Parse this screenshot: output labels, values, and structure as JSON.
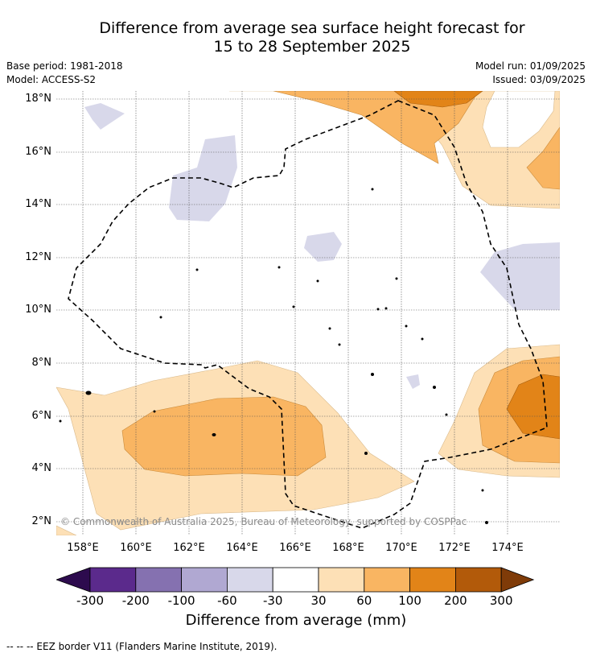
{
  "title_line1": "Difference from average sea surface height forecast for",
  "title_line2": "15 to 28 September 2025",
  "base_period": "Base period: 1981-2018",
  "model": "Model: ACCESS-S2",
  "model_run": "Model run: 01/09/2025",
  "issued": "Issued: 03/09/2025",
  "lat_labels": [
    "18°N",
    "16°N",
    "14°N",
    "12°N",
    "10°N",
    "8°N",
    "6°N",
    "4°N",
    "2°N"
  ],
  "lon_labels": [
    "158°E",
    "160°E",
    "162°E",
    "164°E",
    "166°E",
    "168°E",
    "170°E",
    "172°E",
    "174°E"
  ],
  "copyright": "© Commonwealth of Australia 2025, Bureau of Meteorology, supported by COSPPac",
  "colorbar": {
    "ticks": [
      "-300",
      "-200",
      "-100",
      "-60",
      "-30",
      "30",
      "60",
      "100",
      "200",
      "300"
    ],
    "colors": [
      "#2d0b4e",
      "#5b2a8c",
      "#8571b0",
      "#b0a8d2",
      "#d8d8ea",
      "#ffffff",
      "#fde0b6",
      "#f9b562",
      "#e28418",
      "#b25a0a",
      "#7f3b08"
    ],
    "title": "Difference from average (mm)"
  },
  "footnote": "--  --  -- EEZ border V11 (Flanders Marine Institute, 2019)."
}
